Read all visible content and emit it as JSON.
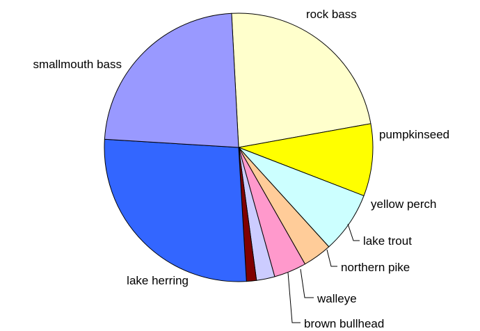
{
  "chart_data": {
    "type": "pie",
    "title": "",
    "slices": [
      {
        "label": "rock bass",
        "value": 23.0,
        "color": "#FFFFCC"
      },
      {
        "label": "pumpkinseed",
        "value": 8.7,
        "color": "#FFFF00"
      },
      {
        "label": "yellow perch",
        "value": 7.4,
        "color": "#CCFFFF"
      },
      {
        "label": "lake trout",
        "value": 3.5,
        "color": "#FFCC99"
      },
      {
        "label": "northern pike",
        "value": 3.9,
        "color": "#FF99CC"
      },
      {
        "label": "walleye",
        "value": 2.2,
        "color": "#CCCCFF"
      },
      {
        "label": "brown bullhead",
        "value": 1.2,
        "color": "#800000"
      },
      {
        "label": "lake herring",
        "value": 26.9,
        "color": "#3366FF"
      },
      {
        "label": "smallmouth bass",
        "value": 23.2,
        "color": "#9999FF"
      }
    ],
    "start_angle": "top, clockwise",
    "legend": "none"
  }
}
